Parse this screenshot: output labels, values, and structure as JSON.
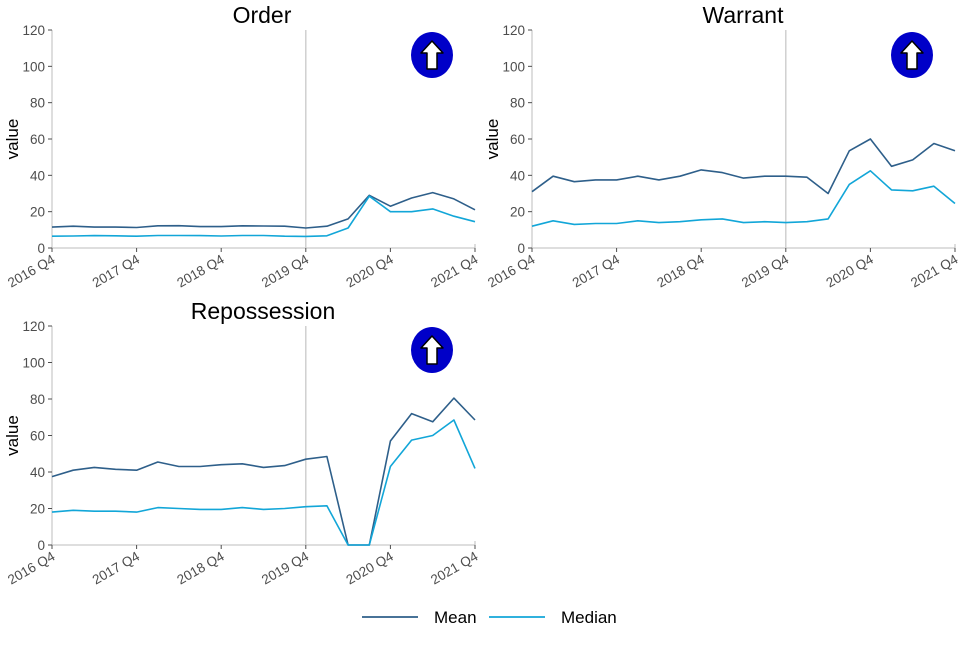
{
  "colors": {
    "mean": "#2e5f8a",
    "median": "#12a6d8",
    "vline": "#c9c9c9",
    "axis": "#bdbdbd",
    "tick_text": "#4d4d4d",
    "badge_fill": "#0000c8"
  },
  "legend": {
    "mean_label": "Mean",
    "median_label": "Median",
    "placement": "bottom"
  },
  "badge_icon": "up-arrow-icon",
  "chart_data": [
    {
      "type": "line",
      "title": "Order",
      "ylabel": "value",
      "ylim": [
        0,
        120
      ],
      "yticks": [
        0,
        20,
        40,
        60,
        80,
        100,
        120
      ],
      "xticks": [
        "2016 Q4",
        "2017 Q4",
        "2018 Q4",
        "2019 Q4",
        "2020 Q4",
        "2021 Q4"
      ],
      "vline_at": "2019 Q4",
      "x": [
        "2016 Q4",
        "2017 Q1",
        "2017 Q2",
        "2017 Q3",
        "2017 Q4",
        "2018 Q1",
        "2018 Q2",
        "2018 Q3",
        "2018 Q4",
        "2019 Q1",
        "2019 Q2",
        "2019 Q3",
        "2019 Q4",
        "2020 Q1",
        "2020 Q2",
        "2020 Q3",
        "2020 Q4",
        "2021 Q1",
        "2021 Q2",
        "2021 Q3",
        "2021 Q4"
      ],
      "series": [
        {
          "name": "Mean",
          "values": [
            11.5,
            12,
            11.5,
            11.5,
            11.3,
            12.2,
            12.3,
            11.8,
            11.8,
            12.2,
            12.1,
            12.0,
            11.0,
            12.0,
            16.0,
            29.0,
            23.0,
            27.5,
            30.5,
            27.0,
            21.0
          ]
        },
        {
          "name": "Median",
          "values": [
            6.5,
            6.6,
            6.8,
            6.7,
            6.5,
            6.9,
            6.9,
            6.8,
            6.6,
            6.9,
            6.9,
            6.5,
            6.4,
            6.7,
            11.0,
            28.5,
            20.0,
            20.0,
            21.5,
            17.5,
            14.5
          ]
        }
      ]
    },
    {
      "type": "line",
      "title": "Warrant",
      "ylabel": "value",
      "ylim": [
        0,
        120
      ],
      "yticks": [
        0,
        20,
        40,
        60,
        80,
        100,
        120
      ],
      "xticks": [
        "2016 Q4",
        "2017 Q4",
        "2018 Q4",
        "2019 Q4",
        "2020 Q4",
        "2021 Q4"
      ],
      "vline_at": "2019 Q4",
      "x": [
        "2016 Q4",
        "2017 Q1",
        "2017 Q2",
        "2017 Q3",
        "2017 Q4",
        "2018 Q1",
        "2018 Q2",
        "2018 Q3",
        "2018 Q4",
        "2019 Q1",
        "2019 Q2",
        "2019 Q3",
        "2019 Q4",
        "2020 Q1",
        "2020 Q2",
        "2020 Q3",
        "2020 Q4",
        "2021 Q1",
        "2021 Q2",
        "2021 Q3",
        "2021 Q4"
      ],
      "series": [
        {
          "name": "Mean",
          "values": [
            31.0,
            39.5,
            36.5,
            37.5,
            37.5,
            39.5,
            37.5,
            39.5,
            43.0,
            41.5,
            38.5,
            39.5,
            39.5,
            39.0,
            30.0,
            53.5,
            60.0,
            45.0,
            48.5,
            57.5,
            53.5
          ]
        },
        {
          "name": "Median",
          "values": [
            12.0,
            15.0,
            13.0,
            13.5,
            13.5,
            15.0,
            14.0,
            14.5,
            15.5,
            16.0,
            14.0,
            14.5,
            14.0,
            14.5,
            16.0,
            35.0,
            42.5,
            32.0,
            31.5,
            34.0,
            24.5
          ]
        }
      ]
    },
    {
      "type": "line",
      "title": "Repossession",
      "ylabel": "value",
      "ylim": [
        0,
        120
      ],
      "yticks": [
        0,
        20,
        40,
        60,
        80,
        100,
        120
      ],
      "xticks": [
        "2016 Q4",
        "2017 Q4",
        "2018 Q4",
        "2019 Q4",
        "2020 Q4",
        "2021 Q4"
      ],
      "vline_at": "2019 Q4",
      "x": [
        "2016 Q4",
        "2017 Q1",
        "2017 Q2",
        "2017 Q3",
        "2017 Q4",
        "2018 Q1",
        "2018 Q2",
        "2018 Q3",
        "2018 Q4",
        "2019 Q1",
        "2019 Q2",
        "2019 Q3",
        "2019 Q4",
        "2020 Q1",
        "2020 Q2",
        "2020 Q3",
        "2020 Q4",
        "2021 Q1",
        "2021 Q2",
        "2021 Q3",
        "2021 Q4"
      ],
      "series": [
        {
          "name": "Mean",
          "values": [
            37.5,
            41.0,
            42.5,
            41.5,
            41.0,
            45.5,
            43.0,
            43.0,
            44.0,
            44.5,
            42.5,
            43.5,
            47.0,
            48.5,
            0,
            0,
            57.0,
            72.0,
            67.5,
            80.5,
            68.5
          ]
        },
        {
          "name": "Median",
          "values": [
            18.0,
            19.0,
            18.5,
            18.5,
            18.0,
            20.5,
            20.0,
            19.5,
            19.5,
            20.5,
            19.5,
            20.0,
            21.0,
            21.5,
            0,
            0,
            43.0,
            57.5,
            60.0,
            68.5,
            42.0
          ]
        }
      ]
    }
  ]
}
